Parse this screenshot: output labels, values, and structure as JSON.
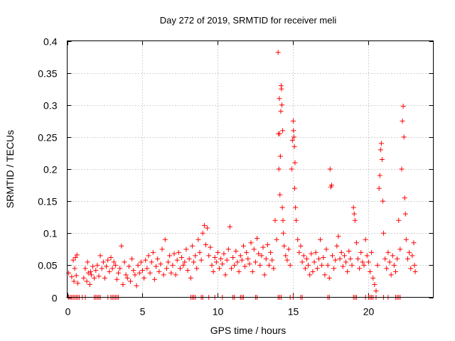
{
  "chart_data": {
    "type": "scatter",
    "title": "Day 272 of 2019, SRMTID for receiver meli",
    "xlabel": "GPS time / hours",
    "ylabel": "SRMTID / TECUs",
    "xlim": [
      0,
      24.3
    ],
    "ylim": [
      0,
      0.4
    ],
    "x_ticks": [
      "0",
      "5",
      "10",
      "15",
      "20"
    ],
    "y_ticks": [
      "0",
      "0.05",
      "0.1",
      "0.15",
      "0.2",
      "0.25",
      "0.3",
      "0.35",
      "0.4"
    ],
    "grid": true,
    "marker": "plus",
    "color": "#ff0000",
    "series": [
      {
        "name": "SRMTID",
        "points": [
          [
            0.1,
            0.038
          ],
          [
            0.3,
            0.032
          ],
          [
            0.4,
            0.058
          ],
          [
            0.45,
            0.025
          ],
          [
            0.5,
            0.045
          ],
          [
            0.55,
            0.062
          ],
          [
            0.6,
            0.034
          ],
          [
            0.65,
            0.066
          ],
          [
            0.7,
            0.022
          ],
          [
            1.1,
            0.03
          ],
          [
            1.2,
            0.045
          ],
          [
            1.3,
            0.025
          ],
          [
            1.35,
            0.055
          ],
          [
            1.4,
            0.038
          ],
          [
            1.5,
            0.02
          ],
          [
            1.55,
            0.04
          ],
          [
            1.6,
            0.035
          ],
          [
            1.7,
            0.048
          ],
          [
            1.8,
            0.03
          ],
          [
            1.9,
            0.042
          ],
          [
            2.0,
            0.05
          ],
          [
            2.1,
            0.033
          ],
          [
            2.2,
            0.065
          ],
          [
            2.3,
            0.045
          ],
          [
            2.4,
            0.055
          ],
          [
            2.5,
            0.03
          ],
          [
            2.6,
            0.048
          ],
          [
            2.7,
            0.058
          ],
          [
            2.8,
            0.04
          ],
          [
            2.9,
            0.062
          ],
          [
            3.0,
            0.045
          ],
          [
            3.1,
            0.055
          ],
          [
            3.2,
            0.05
          ],
          [
            3.3,
            0.028
          ],
          [
            3.4,
            0.038
          ],
          [
            3.5,
            0.045
          ],
          [
            3.6,
            0.08
          ],
          [
            3.7,
            0.02
          ],
          [
            3.8,
            0.055
          ],
          [
            3.9,
            0.035
          ],
          [
            4.0,
            0.03
          ],
          [
            4.1,
            0.048
          ],
          [
            4.2,
            0.025
          ],
          [
            4.3,
            0.06
          ],
          [
            4.4,
            0.042
          ],
          [
            4.5,
            0.035
          ],
          [
            4.6,
            0.018
          ],
          [
            4.7,
            0.05
          ],
          [
            4.8,
            0.038
          ],
          [
            4.9,
            0.055
          ],
          [
            5.0,
            0.042
          ],
          [
            5.1,
            0.03
          ],
          [
            5.2,
            0.058
          ],
          [
            5.3,
            0.045
          ],
          [
            5.4,
            0.065
          ],
          [
            5.5,
            0.038
          ],
          [
            5.6,
            0.055
          ],
          [
            5.7,
            0.07
          ],
          [
            5.8,
            0.028
          ],
          [
            5.9,
            0.048
          ],
          [
            6.0,
            0.06
          ],
          [
            6.1,
            0.04
          ],
          [
            6.2,
            0.052
          ],
          [
            6.3,
            0.075
          ],
          [
            6.4,
            0.035
          ],
          [
            6.5,
            0.09
          ],
          [
            6.6,
            0.045
          ],
          [
            6.7,
            0.055
          ],
          [
            6.8,
            0.065
          ],
          [
            6.9,
            0.038
          ],
          [
            7.0,
            0.05
          ],
          [
            7.1,
            0.068
          ],
          [
            7.2,
            0.035
          ],
          [
            7.3,
            0.058
          ],
          [
            7.4,
            0.07
          ],
          [
            7.5,
            0.045
          ],
          [
            7.6,
            0.062
          ],
          [
            7.7,
            0.05
          ],
          [
            7.8,
            0.055
          ],
          [
            7.9,
            0.075
          ],
          [
            8.0,
            0.042
          ],
          [
            8.1,
            0.06
          ],
          [
            8.2,
            0.03
          ],
          [
            8.3,
            0.08
          ],
          [
            8.4,
            0.055
          ],
          [
            8.5,
            0.065
          ],
          [
            8.6,
            0.045
          ],
          [
            8.7,
            0.09
          ],
          [
            8.8,
            0.07
          ],
          [
            8.9,
            0.058
          ],
          [
            9.0,
            0.1
          ],
          [
            9.1,
            0.112
          ],
          [
            9.2,
            0.082
          ],
          [
            9.3,
            0.108
          ],
          [
            9.4,
            0.065
          ],
          [
            9.5,
            0.078
          ],
          [
            9.6,
            0.05
          ],
          [
            9.7,
            0.04
          ],
          [
            9.8,
            0.062
          ],
          [
            9.9,
            0.055
          ],
          [
            10.0,
            0.07
          ],
          [
            10.1,
            0.045
          ],
          [
            10.2,
            0.06
          ],
          [
            10.3,
            0.052
          ],
          [
            10.4,
            0.068
          ],
          [
            10.5,
            0.035
          ],
          [
            10.6,
            0.058
          ],
          [
            10.7,
            0.075
          ],
          [
            10.8,
            0.11
          ],
          [
            10.9,
            0.045
          ],
          [
            11.0,
            0.062
          ],
          [
            11.1,
            0.05
          ],
          [
            11.2,
            0.072
          ],
          [
            11.3,
            0.055
          ],
          [
            11.4,
            0.04
          ],
          [
            11.5,
            0.065
          ],
          [
            11.6,
            0.058
          ],
          [
            11.7,
            0.08
          ],
          [
            11.8,
            0.048
          ],
          [
            11.9,
            0.07
          ],
          [
            12.0,
            0.06
          ],
          [
            12.1,
            0.052
          ],
          [
            12.2,
            0.085
          ],
          [
            12.3,
            0.04
          ],
          [
            12.4,
            0.075
          ],
          [
            12.5,
            0.055
          ],
          [
            12.6,
            0.092
          ],
          [
            12.7,
            0.068
          ],
          [
            12.8,
            0.05
          ],
          [
            12.9,
            0.065
          ],
          [
            13.0,
            0.078
          ],
          [
            13.1,
            0.035
          ],
          [
            13.2,
            0.06
          ],
          [
            13.3,
            0.082
          ],
          [
            13.4,
            0.05
          ],
          [
            13.5,
            0.07
          ],
          [
            13.6,
            0.058
          ],
          [
            13.7,
            0.045
          ],
          [
            13.8,
            0.12
          ],
          [
            13.9,
            0.09
          ],
          [
            14.0,
            0.382
          ],
          [
            14.02,
            0.255
          ],
          [
            14.05,
            0.2
          ],
          [
            14.08,
            0.31
          ],
          [
            14.1,
            0.255
          ],
          [
            14.12,
            0.16
          ],
          [
            14.15,
            0.22
          ],
          [
            14.18,
            0.29
          ],
          [
            14.2,
            0.33
          ],
          [
            14.22,
            0.325
          ],
          [
            14.25,
            0.3
          ],
          [
            14.28,
            0.14
          ],
          [
            14.3,
            0.26
          ],
          [
            14.32,
            0.12
          ],
          [
            14.35,
            0.1
          ],
          [
            14.4,
            0.08
          ],
          [
            14.5,
            0.065
          ],
          [
            14.6,
            0.058
          ],
          [
            14.7,
            0.075
          ],
          [
            14.8,
            0.05
          ],
          [
            14.9,
            0.2
          ],
          [
            14.95,
            0.245
          ],
          [
            15.0,
            0.275
          ],
          [
            15.02,
            0.26
          ],
          [
            15.05,
            0.25
          ],
          [
            15.08,
            0.235
          ],
          [
            15.1,
            0.17
          ],
          [
            15.12,
            0.21
          ],
          [
            15.15,
            0.14
          ],
          [
            15.2,
            0.12
          ],
          [
            15.3,
            0.09
          ],
          [
            15.4,
            0.07
          ],
          [
            15.5,
            0.08
          ],
          [
            15.6,
            0.055
          ],
          [
            15.7,
            0.065
          ],
          [
            15.8,
            0.045
          ],
          [
            15.9,
            0.06
          ],
          [
            16.0,
            0.05
          ],
          [
            16.1,
            0.035
          ],
          [
            16.2,
            0.068
          ],
          [
            16.3,
            0.04
          ],
          [
            16.4,
            0.055
          ],
          [
            16.5,
            0.07
          ],
          [
            16.6,
            0.045
          ],
          [
            16.7,
            0.06
          ],
          [
            16.8,
            0.09
          ],
          [
            16.9,
            0.05
          ],
          [
            17.0,
            0.062
          ],
          [
            17.1,
            0.035
          ],
          [
            17.2,
            0.075
          ],
          [
            17.3,
            0.05
          ],
          [
            17.4,
            0.03
          ],
          [
            17.45,
            0.2
          ],
          [
            17.5,
            0.172
          ],
          [
            17.55,
            0.175
          ],
          [
            17.6,
            0.065
          ],
          [
            17.7,
            0.045
          ],
          [
            17.8,
            0.058
          ],
          [
            17.9,
            0.08
          ],
          [
            18.0,
            0.095
          ],
          [
            18.1,
            0.06
          ],
          [
            18.2,
            0.07
          ],
          [
            18.3,
            0.048
          ],
          [
            18.4,
            0.065
          ],
          [
            18.5,
            0.055
          ],
          [
            18.6,
            0.04
          ],
          [
            18.7,
            0.072
          ],
          [
            18.8,
            0.06
          ],
          [
            18.9,
            0.05
          ],
          [
            19.0,
            0.14
          ],
          [
            19.05,
            0.13
          ],
          [
            19.1,
            0.12
          ],
          [
            19.2,
            0.085
          ],
          [
            19.3,
            0.06
          ],
          [
            19.4,
            0.045
          ],
          [
            19.5,
            0.07
          ],
          [
            19.6,
            0.055
          ],
          [
            19.7,
            0.05
          ],
          [
            19.8,
            0.09
          ],
          [
            19.9,
            0.065
          ],
          [
            20.0,
            0.055
          ],
          [
            20.1,
            0.04
          ],
          [
            20.2,
            0.07
          ],
          [
            20.3,
            0.03
          ],
          [
            20.4,
            0.02
          ],
          [
            20.5,
            0.01
          ],
          [
            20.6,
            0.05
          ],
          [
            20.7,
            0.17
          ],
          [
            20.75,
            0.19
          ],
          [
            20.8,
            0.23
          ],
          [
            20.85,
            0.24
          ],
          [
            20.9,
            0.215
          ],
          [
            20.95,
            0.15
          ],
          [
            21.0,
            0.1
          ],
          [
            21.1,
            0.06
          ],
          [
            21.2,
            0.045
          ],
          [
            21.3,
            0.07
          ],
          [
            21.4,
            0.055
          ],
          [
            21.5,
            0.035
          ],
          [
            21.6,
            0.065
          ],
          [
            21.7,
            0.05
          ],
          [
            21.8,
            0.04
          ],
          [
            21.9,
            0.06
          ],
          [
            22.0,
            0.12
          ],
          [
            22.1,
            0.075
          ],
          [
            22.2,
            0.2
          ],
          [
            22.25,
            0.275
          ],
          [
            22.3,
            0.298
          ],
          [
            22.35,
            0.25
          ],
          [
            22.4,
            0.155
          ],
          [
            22.45,
            0.13
          ],
          [
            22.5,
            0.09
          ],
          [
            22.6,
            0.06
          ],
          [
            22.7,
            0.07
          ],
          [
            22.8,
            0.045
          ],
          [
            22.9,
            0.065
          ],
          [
            23.0,
            0.085
          ],
          [
            23.05,
            0.05
          ],
          [
            23.1,
            0.04
          ]
        ],
        "zero_points": [
          0.1,
          0.2,
          0.3,
          0.4,
          0.5,
          0.6,
          0.7,
          0.8,
          1.0,
          1.2,
          1.8,
          1.9,
          2.0,
          2.1,
          2.2,
          2.7,
          2.9,
          3.0,
          3.1,
          3.2,
          3.3,
          3.4,
          8.2,
          8.3,
          8.4,
          8.5,
          8.9,
          9.0,
          9.4,
          9.8,
          10.3,
          11.0,
          11.1,
          11.5,
          11.6,
          11.7,
          12.5,
          12.6,
          14.0,
          14.1,
          14.2,
          14.8,
          15.0,
          15.5,
          15.6,
          17.3,
          17.4,
          19.0,
          19.1,
          19.2,
          19.8,
          20.0,
          20.1,
          20.2,
          20.3,
          20.5,
          21.0,
          21.3,
          21.8,
          21.9,
          22.0,
          22.1
        ]
      }
    ]
  }
}
